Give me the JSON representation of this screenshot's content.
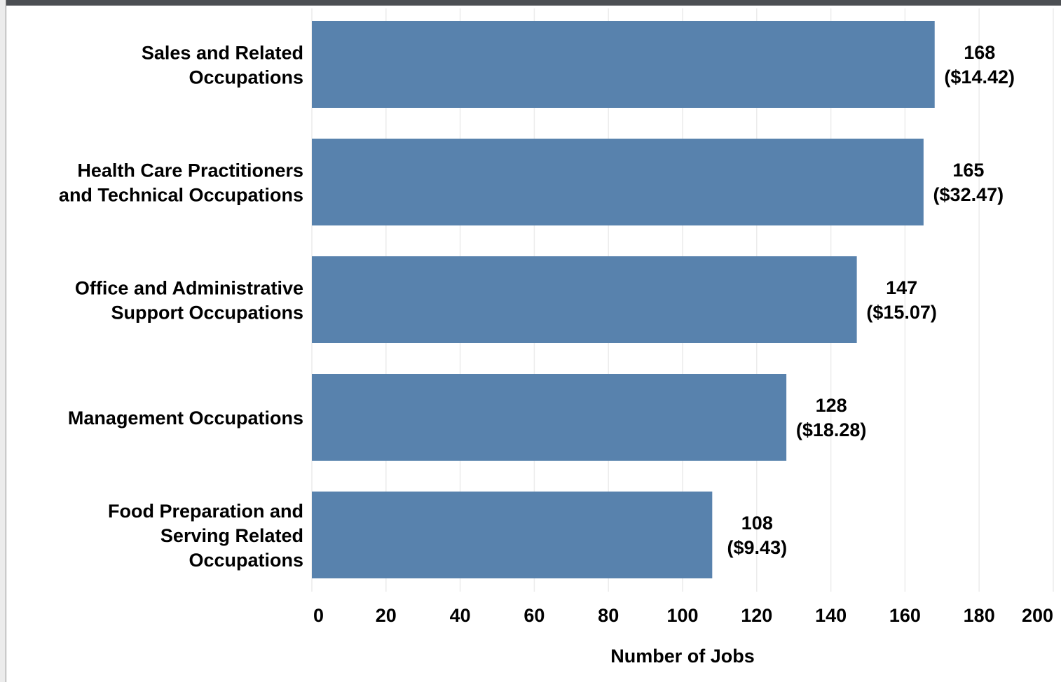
{
  "chart_data": {
    "type": "bar",
    "orientation": "horizontal",
    "categories": [
      [
        "Sales and Related",
        "Occupations"
      ],
      [
        "Health Care Practitioners",
        "and Technical Occupations"
      ],
      [
        "Office and Administrative",
        "Support Occupations"
      ],
      [
        "Management Occupations"
      ],
      [
        "Food Preparation and",
        "Serving Related",
        "Occupations"
      ]
    ],
    "values": [
      168,
      165,
      147,
      128,
      108
    ],
    "wages": [
      "($14.42)",
      "($32.47)",
      "($15.07)",
      "($18.28)",
      "($9.43)"
    ],
    "xlabel": "Number of Jobs",
    "ylabel": "",
    "xlim": [
      0,
      200
    ],
    "xticks": [
      0,
      20,
      40,
      60,
      80,
      100,
      120,
      140,
      160,
      180,
      200
    ],
    "grid": "vertical",
    "legend": "none",
    "colors": {
      "bar": "#5882ad",
      "grid": "#ececec",
      "text": "#000000"
    }
  }
}
